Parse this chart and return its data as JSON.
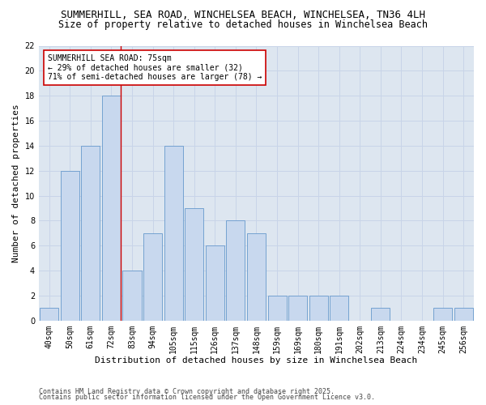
{
  "title1": "SUMMERHILL, SEA ROAD, WINCHELSEA BEACH, WINCHELSEA, TN36 4LH",
  "title2": "Size of property relative to detached houses in Winchelsea Beach",
  "xlabel": "Distribution of detached houses by size in Winchelsea Beach",
  "ylabel": "Number of detached properties",
  "categories": [
    "40sqm",
    "50sqm",
    "61sqm",
    "72sqm",
    "83sqm",
    "94sqm",
    "105sqm",
    "115sqm",
    "126sqm",
    "137sqm",
    "148sqm",
    "159sqm",
    "169sqm",
    "180sqm",
    "191sqm",
    "202sqm",
    "213sqm",
    "224sqm",
    "234sqm",
    "245sqm",
    "256sqm"
  ],
  "values": [
    1,
    12,
    14,
    18,
    4,
    7,
    14,
    9,
    6,
    8,
    7,
    2,
    2,
    2,
    2,
    0,
    1,
    0,
    0,
    1,
    1
  ],
  "bar_color": "#c8d8ee",
  "bar_edge_color": "#6699cc",
  "annotation_text": "SUMMERHILL SEA ROAD: 75sqm\n← 29% of detached houses are smaller (32)\n71% of semi-detached houses are larger (78) →",
  "annotation_box_color": "#ffffff",
  "annotation_box_edge": "#cc0000",
  "vline_color": "#cc0000",
  "ylim": [
    0,
    22
  ],
  "yticks": [
    0,
    2,
    4,
    6,
    8,
    10,
    12,
    14,
    16,
    18,
    20,
    22
  ],
  "grid_color": "#c8d4e8",
  "bg_color": "#dde6f0",
  "fig_bg_color": "#ffffff",
  "footer1": "Contains HM Land Registry data © Crown copyright and database right 2025.",
  "footer2": "Contains public sector information licensed under the Open Government Licence v3.0.",
  "title_fontsize": 9,
  "subtitle_fontsize": 8.5,
  "axis_label_fontsize": 8,
  "tick_fontsize": 7,
  "annotation_fontsize": 7,
  "footer_fontsize": 6
}
